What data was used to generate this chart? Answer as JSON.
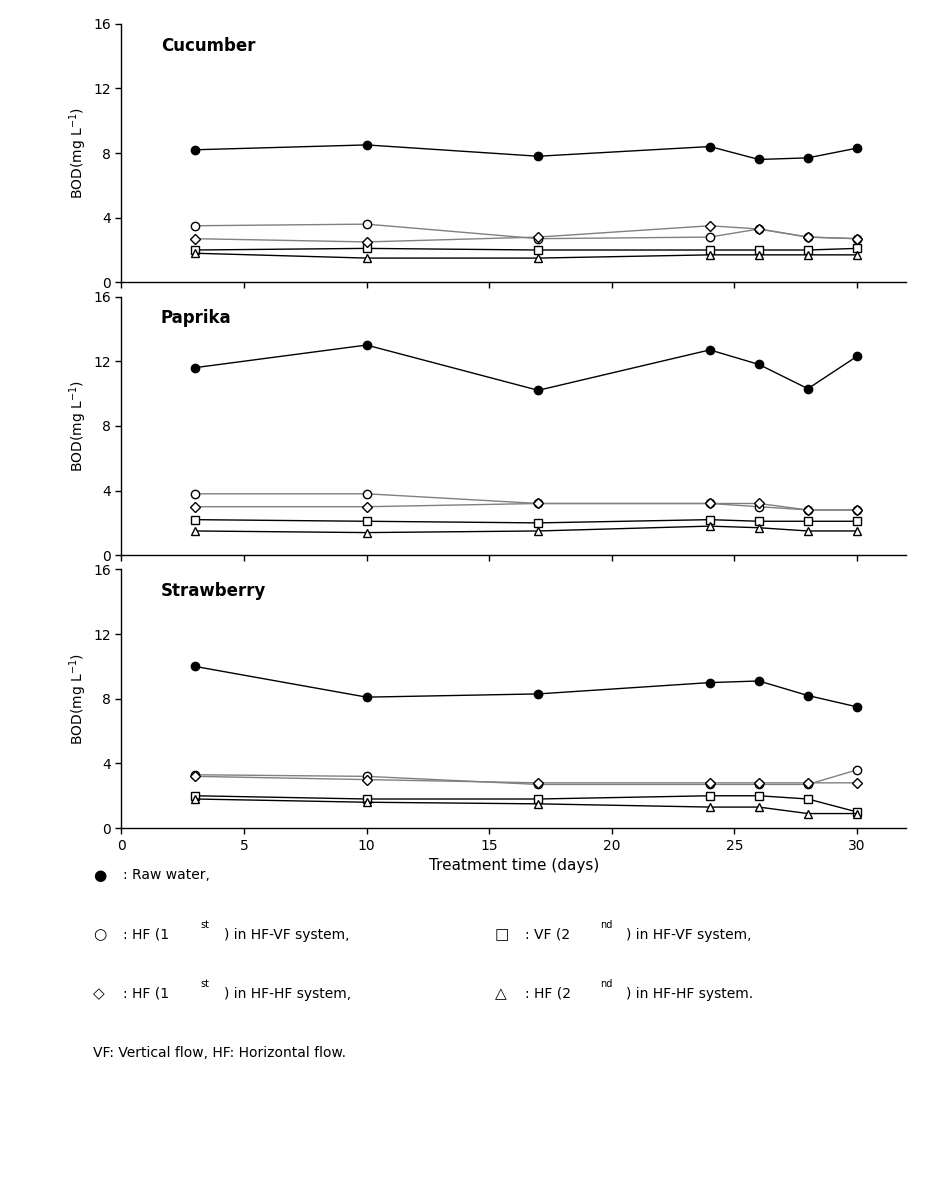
{
  "x": [
    3,
    10,
    17,
    24,
    26,
    28,
    30
  ],
  "panels": [
    {
      "title": "Cucumber",
      "raw_water": [
        8.2,
        8.5,
        7.8,
        8.4,
        7.6,
        7.7,
        8.3
      ],
      "hf_hfvf": [
        3.5,
        3.6,
        2.7,
        2.8,
        3.3,
        2.8,
        2.7
      ],
      "vf_hfvf": [
        2.0,
        2.1,
        2.0,
        2.0,
        2.0,
        2.0,
        2.1
      ],
      "hf_hfhf": [
        2.7,
        2.5,
        2.8,
        3.5,
        3.3,
        2.8,
        2.7
      ],
      "hf2_hfhf": [
        1.8,
        1.5,
        1.5,
        1.7,
        1.7,
        1.7,
        1.7
      ]
    },
    {
      "title": "Paprika",
      "raw_water": [
        11.6,
        13.0,
        10.2,
        12.7,
        11.8,
        10.3,
        12.3
      ],
      "hf_hfvf": [
        3.8,
        3.8,
        3.2,
        3.2,
        3.0,
        2.8,
        2.8
      ],
      "vf_hfvf": [
        2.2,
        2.1,
        2.0,
        2.2,
        2.1,
        2.1,
        2.1
      ],
      "hf_hfhf": [
        3.0,
        3.0,
        3.2,
        3.2,
        3.2,
        2.8,
        2.8
      ],
      "hf2_hfhf": [
        1.5,
        1.4,
        1.5,
        1.8,
        1.7,
        1.5,
        1.5
      ]
    },
    {
      "title": "Strawberry",
      "raw_water": [
        10.0,
        8.1,
        8.3,
        9.0,
        9.1,
        8.2,
        7.5
      ],
      "hf_hfvf": [
        3.3,
        3.2,
        2.7,
        2.7,
        2.7,
        2.7,
        3.6
      ],
      "vf_hfvf": [
        2.0,
        1.8,
        1.8,
        2.0,
        2.0,
        1.8,
        1.0
      ],
      "hf_hfhf": [
        3.2,
        3.0,
        2.8,
        2.8,
        2.8,
        2.8,
        2.8
      ],
      "hf2_hfhf": [
        1.8,
        1.6,
        1.5,
        1.3,
        1.3,
        0.9,
        0.9
      ]
    }
  ],
  "xlabel": "Treatment time (days)",
  "ylim": [
    0,
    16
  ],
  "yticks": [
    0,
    4,
    8,
    12,
    16
  ],
  "xlim": [
    0,
    32
  ],
  "xticks": [
    0,
    5,
    10,
    15,
    20,
    25,
    30
  ]
}
